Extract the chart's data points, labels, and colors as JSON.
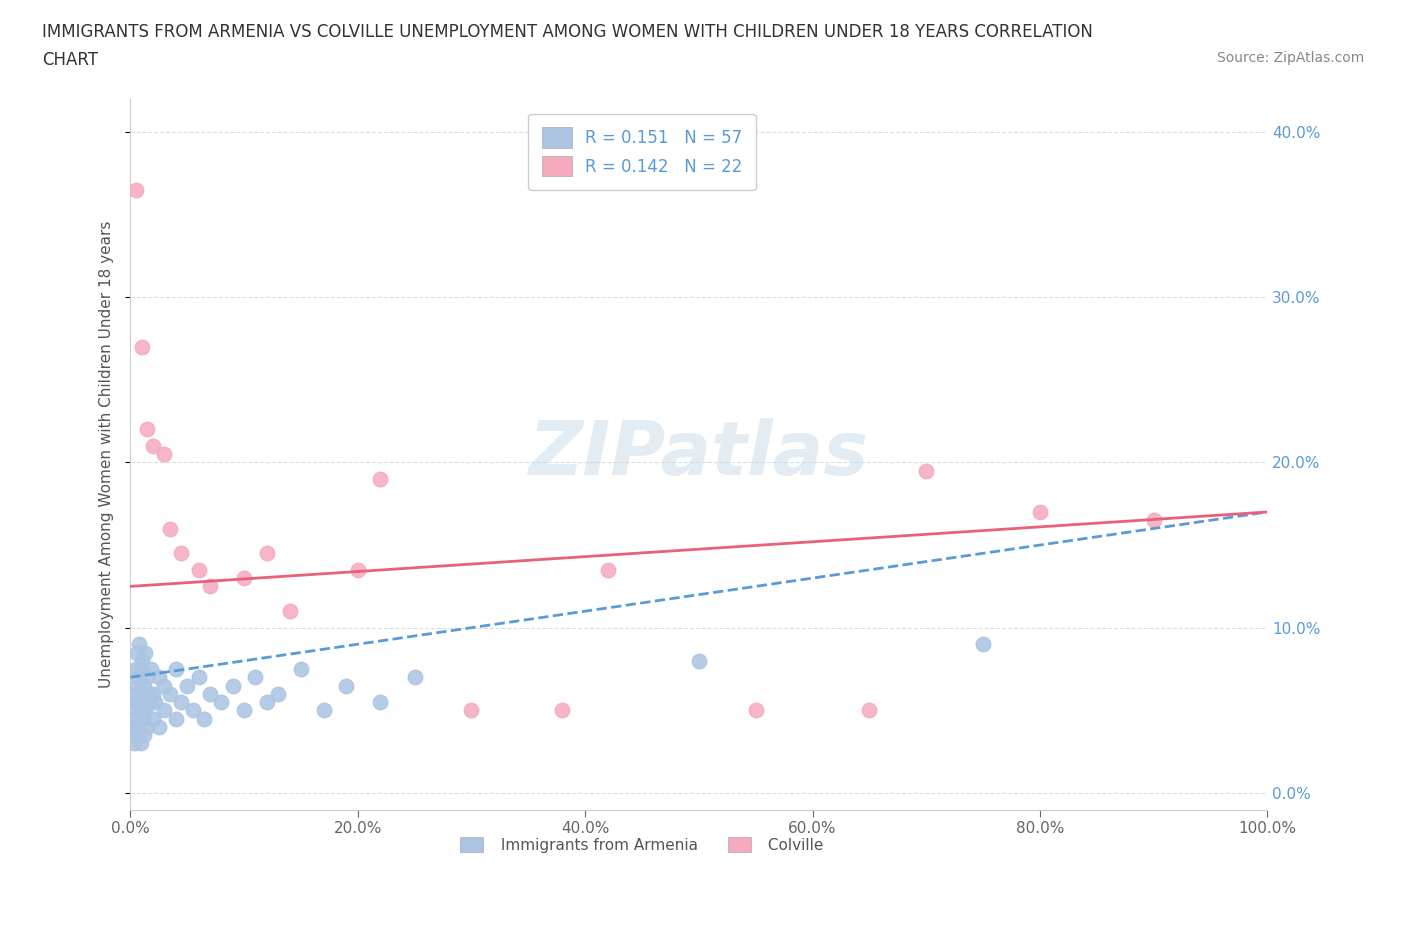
{
  "title_line1": "IMMIGRANTS FROM ARMENIA VS COLVILLE UNEMPLOYMENT AMONG WOMEN WITH CHILDREN UNDER 18 YEARS CORRELATION",
  "title_line2": "CHART",
  "source": "Source: ZipAtlas.com",
  "ylabel": "Unemployment Among Women with Children Under 18 years",
  "R_armenia": 0.151,
  "N_armenia": 57,
  "R_colville": 0.142,
  "N_colville": 22,
  "armenia_color": "#aac4e2",
  "colville_color": "#f5aabe",
  "armenia_line_color": "#5b9bd5",
  "colville_line_color": "#e8607a",
  "background_color": "#ffffff",
  "grid_color": "#dddddd",
  "xlim": [
    0,
    100
  ],
  "ylim": [
    -1,
    42
  ],
  "x_ticks": [
    0,
    20,
    40,
    60,
    80,
    100
  ],
  "y_ticks": [
    0,
    10,
    20,
    30,
    40
  ],
  "armenia_x": [
    0.2,
    0.3,
    0.3,
    0.4,
    0.4,
    0.5,
    0.5,
    0.5,
    0.6,
    0.6,
    0.7,
    0.7,
    0.8,
    0.8,
    0.9,
    1.0,
    1.0,
    1.0,
    1.1,
    1.2,
    1.2,
    1.3,
    1.3,
    1.5,
    1.5,
    1.6,
    1.7,
    1.8,
    2.0,
    2.0,
    2.2,
    2.5,
    2.5,
    3.0,
    3.0,
    3.5,
    4.0,
    4.0,
    4.5,
    5.0,
    5.5,
    6.0,
    6.5,
    7.0,
    8.0,
    9.0,
    10.0,
    11.0,
    12.0,
    13.0,
    15.0,
    17.0,
    19.0,
    22.0,
    25.0,
    50.0,
    75.0
  ],
  "armenia_y": [
    4.0,
    5.5,
    3.0,
    6.0,
    4.5,
    7.5,
    5.0,
    3.5,
    8.5,
    6.5,
    4.0,
    7.0,
    5.5,
    9.0,
    3.0,
    7.5,
    5.0,
    8.0,
    4.5,
    6.5,
    3.5,
    5.0,
    8.5,
    7.0,
    4.0,
    6.0,
    5.5,
    7.5,
    6.0,
    4.5,
    5.5,
    7.0,
    4.0,
    6.5,
    5.0,
    6.0,
    7.5,
    4.5,
    5.5,
    6.5,
    5.0,
    7.0,
    4.5,
    6.0,
    5.5,
    6.5,
    5.0,
    7.0,
    5.5,
    6.0,
    7.5,
    5.0,
    6.5,
    5.5,
    7.0,
    8.0,
    9.0
  ],
  "colville_x": [
    0.5,
    1.0,
    1.5,
    2.0,
    3.0,
    3.5,
    4.5,
    6.0,
    7.0,
    10.0,
    12.0,
    14.0,
    20.0,
    22.0,
    30.0,
    38.0,
    42.0,
    55.0,
    65.0,
    70.0,
    80.0,
    90.0
  ],
  "colville_y": [
    36.5,
    27.0,
    22.0,
    21.0,
    20.5,
    16.0,
    14.5,
    13.5,
    12.5,
    13.0,
    14.5,
    11.0,
    13.5,
    19.0,
    5.0,
    5.0,
    13.5,
    5.0,
    5.0,
    19.5,
    17.0,
    16.5
  ],
  "arm_trend_x": [
    0,
    100
  ],
  "arm_trend_y": [
    7.0,
    17.0
  ],
  "col_trend_x": [
    0,
    100
  ],
  "col_trend_y": [
    12.5,
    17.0
  ]
}
